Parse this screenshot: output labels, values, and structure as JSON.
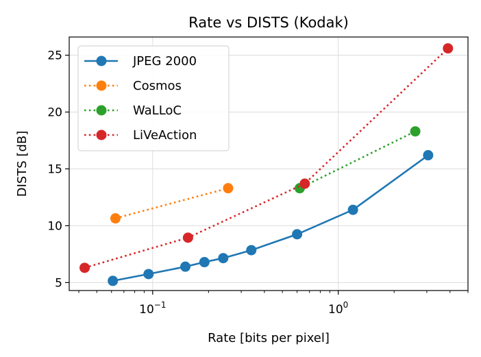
{
  "chart_data": {
    "type": "line",
    "title": "Rate vs DISTS (Kodak)",
    "xlabel": "Rate [bits per pixel]",
    "ylabel": "DISTS [dB]",
    "xscale": "log",
    "xlim": [
      0.0355,
      5.0
    ],
    "ylim": [
      4.3,
      26.6
    ],
    "xticks": [
      {
        "value": 0.1,
        "base": "10",
        "exp": "−1"
      },
      {
        "value": 1.0,
        "base": "10",
        "exp": "0"
      }
    ],
    "yticks": [
      5,
      10,
      15,
      20,
      25
    ],
    "grid": true,
    "legend_position": "top-left",
    "series": [
      {
        "name": "JPEG 2000",
        "color": "#1f77b4",
        "linestyle": "solid",
        "points": [
          [
            0.061,
            5.15
          ],
          [
            0.095,
            5.75
          ],
          [
            0.15,
            6.4
          ],
          [
            0.19,
            6.8
          ],
          [
            0.24,
            7.15
          ],
          [
            0.34,
            7.85
          ],
          [
            0.6,
            9.25
          ],
          [
            1.2,
            11.4
          ],
          [
            3.05,
            16.2
          ]
        ]
      },
      {
        "name": "Cosmos",
        "color": "#ff7f0e",
        "linestyle": "dotted",
        "points": [
          [
            0.063,
            10.65
          ],
          [
            0.255,
            13.3
          ]
        ]
      },
      {
        "name": "WaLLoC",
        "color": "#2ca02c",
        "linestyle": "dotted",
        "points": [
          [
            0.62,
            13.3
          ],
          [
            2.6,
            18.3
          ]
        ]
      },
      {
        "name": "LiVeAction",
        "color": "#d62728",
        "linestyle": "dotted",
        "points": [
          [
            0.043,
            6.3
          ],
          [
            0.155,
            8.95
          ],
          [
            0.66,
            13.7
          ],
          [
            3.9,
            25.6
          ]
        ]
      }
    ]
  }
}
